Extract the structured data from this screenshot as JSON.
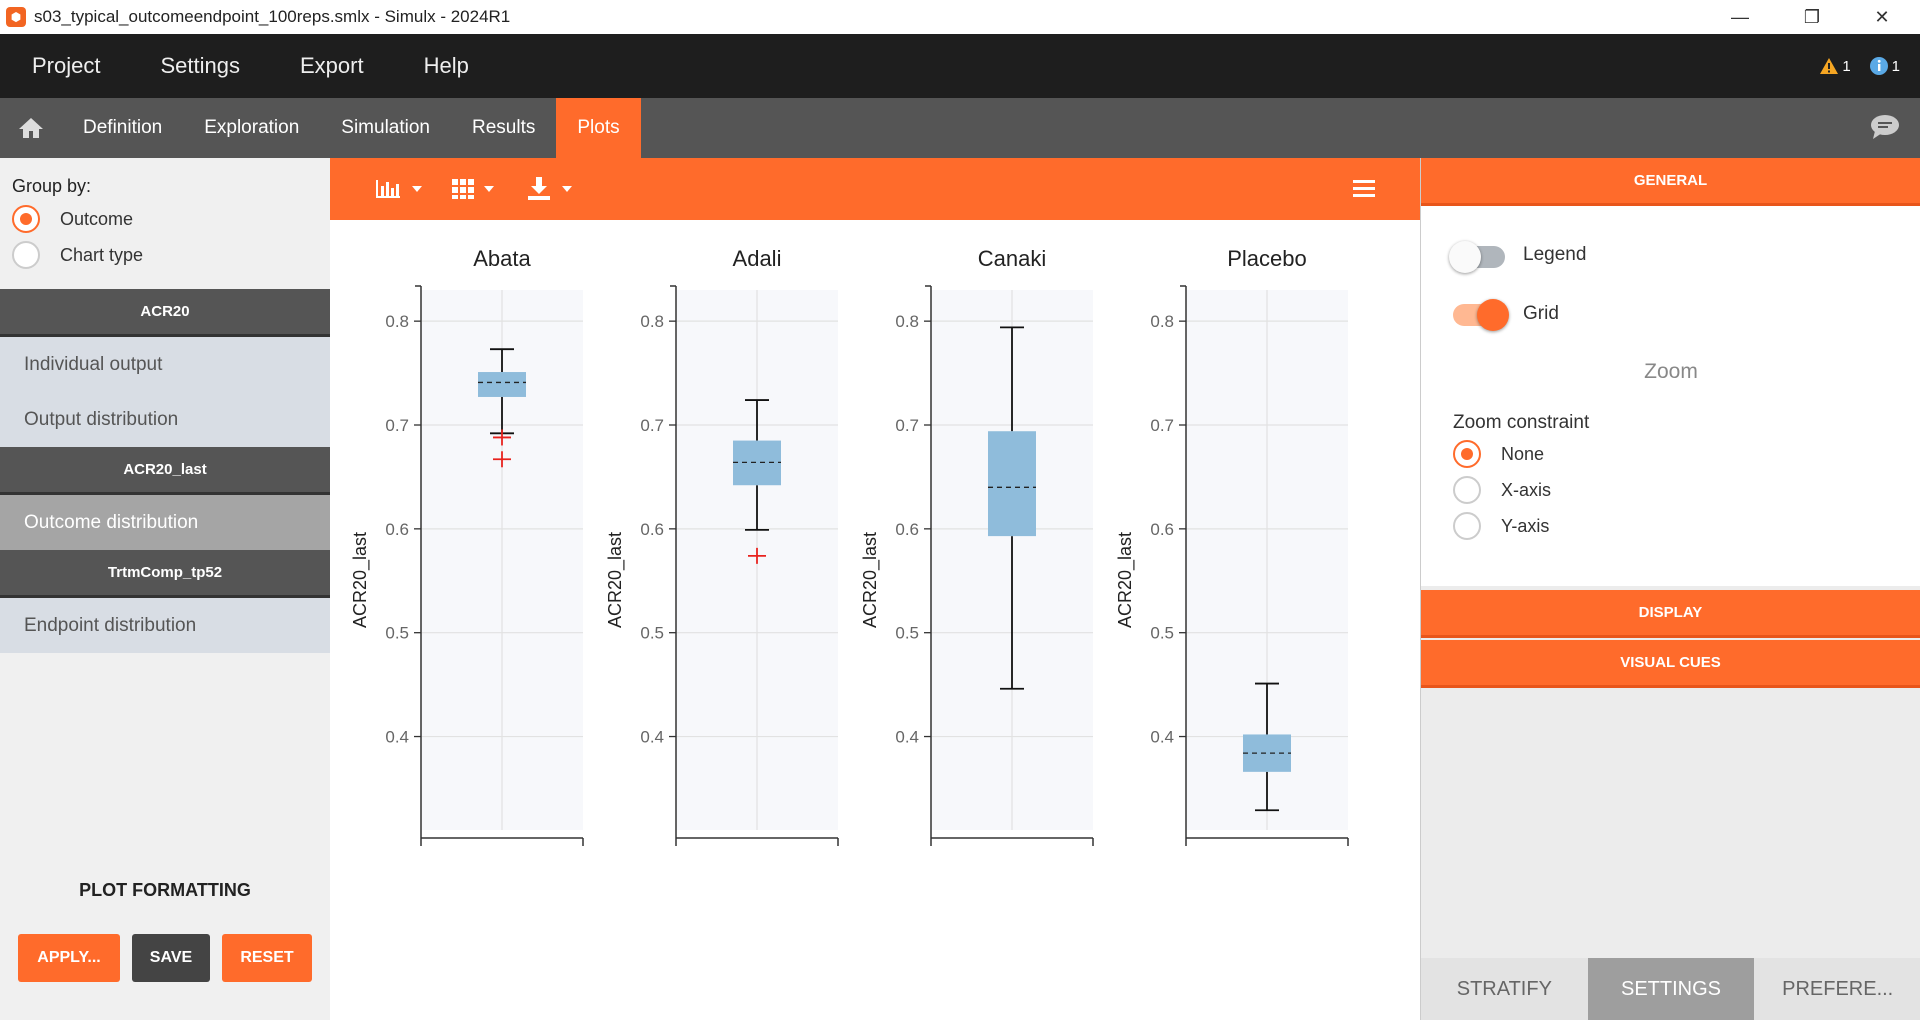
{
  "window": {
    "title": "s03_typical_outcomeendpoint_100reps.smlx - Simulx - 2024R1",
    "minimize": "—",
    "restore": "❐",
    "close": "✕"
  },
  "menu": {
    "items": [
      "Project",
      "Settings",
      "Export",
      "Help"
    ],
    "warning_count": "1",
    "info_count": "1"
  },
  "tabs": {
    "items": [
      "Definition",
      "Exploration",
      "Simulation",
      "Results",
      "Plots"
    ],
    "active": "Plots"
  },
  "sidebar": {
    "group_by_label": "Group by:",
    "group_by_options": [
      {
        "label": "Outcome",
        "selected": true
      },
      {
        "label": "Chart type",
        "selected": false
      }
    ],
    "sections": [
      {
        "header": "ACR20",
        "items": [
          {
            "label": "Individual output",
            "active": false
          },
          {
            "label": "Output distribution",
            "active": false
          }
        ]
      },
      {
        "header": "ACR20_last",
        "items": [
          {
            "label": "Outcome distribution",
            "active": true
          }
        ]
      },
      {
        "header": "TrtmComp_tp52",
        "items": [
          {
            "label": "Endpoint distribution",
            "active": false
          }
        ]
      }
    ],
    "plot_formatting": "PLOT FORMATTING",
    "apply_label": "APPLY...",
    "save_label": "SAVE",
    "reset_label": "RESET"
  },
  "right_panel": {
    "general": "GENERAL",
    "legend_label": "Legend",
    "legend_on": false,
    "grid_label": "Grid",
    "grid_on": true,
    "zoom_title": "Zoom",
    "zoom_constraint_label": "Zoom constraint",
    "zoom_options": [
      {
        "label": "None",
        "selected": true
      },
      {
        "label": "X-axis",
        "selected": false
      },
      {
        "label": "Y-axis",
        "selected": false
      }
    ],
    "display": "DISPLAY",
    "visual_cues": "VISUAL CUES",
    "bottom_tabs": [
      {
        "label": "STRATIFY",
        "active": false
      },
      {
        "label": "SETTINGS",
        "active": true
      },
      {
        "label": "PREFERE...",
        "active": false
      }
    ]
  },
  "colors": {
    "accent": "#ff6b2b",
    "box_fill": "#8fbcdb",
    "outlier": "#e8221e"
  },
  "chart_data": {
    "type": "box",
    "ylabel": "ACR20_last",
    "ylim": [
      0.31,
      0.83
    ],
    "yticks": [
      "0.8",
      "0.7",
      "0.6",
      "0.5",
      "0.4"
    ],
    "grid": true,
    "panels": [
      {
        "title": "Abata",
        "whisker_low": 0.692,
        "q1": 0.727,
        "median": 0.741,
        "q3": 0.751,
        "whisker_high": 0.773,
        "outliers": [
          0.688,
          0.667
        ]
      },
      {
        "title": "Adali",
        "whisker_low": 0.599,
        "q1": 0.642,
        "median": 0.664,
        "q3": 0.685,
        "whisker_high": 0.724,
        "outliers": [
          0.574
        ]
      },
      {
        "title": "Canaki",
        "whisker_low": 0.446,
        "q1": 0.593,
        "median": 0.64,
        "q3": 0.694,
        "whisker_high": 0.794,
        "outliers": []
      },
      {
        "title": "Placebo",
        "whisker_low": 0.329,
        "q1": 0.366,
        "median": 0.384,
        "q3": 0.402,
        "whisker_high": 0.451,
        "outliers": []
      }
    ]
  }
}
